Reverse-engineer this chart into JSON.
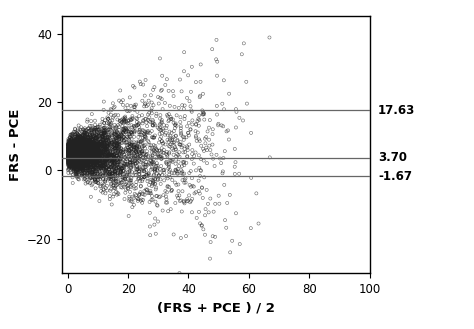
{
  "title": "",
  "xlabel": "(FRS + PCE ) / 2",
  "ylabel": "FRS - PCE",
  "xlim": [
    -2,
    100
  ],
  "ylim": [
    -30,
    45
  ],
  "xticks": [
    0,
    20,
    40,
    60,
    80,
    100
  ],
  "yticks": [
    -20,
    0,
    20,
    40
  ],
  "hlines": [
    17.63,
    3.7,
    -1.67
  ],
  "hline_labels": [
    "17.63",
    "3.70",
    "-1.67"
  ],
  "scatter_edgecolor": "#222222",
  "marker_size": 5,
  "n_points": 5000,
  "seed": 42,
  "background_color": "#ffffff",
  "fig_width": 4.74,
  "fig_height": 3.29,
  "dpi": 100
}
